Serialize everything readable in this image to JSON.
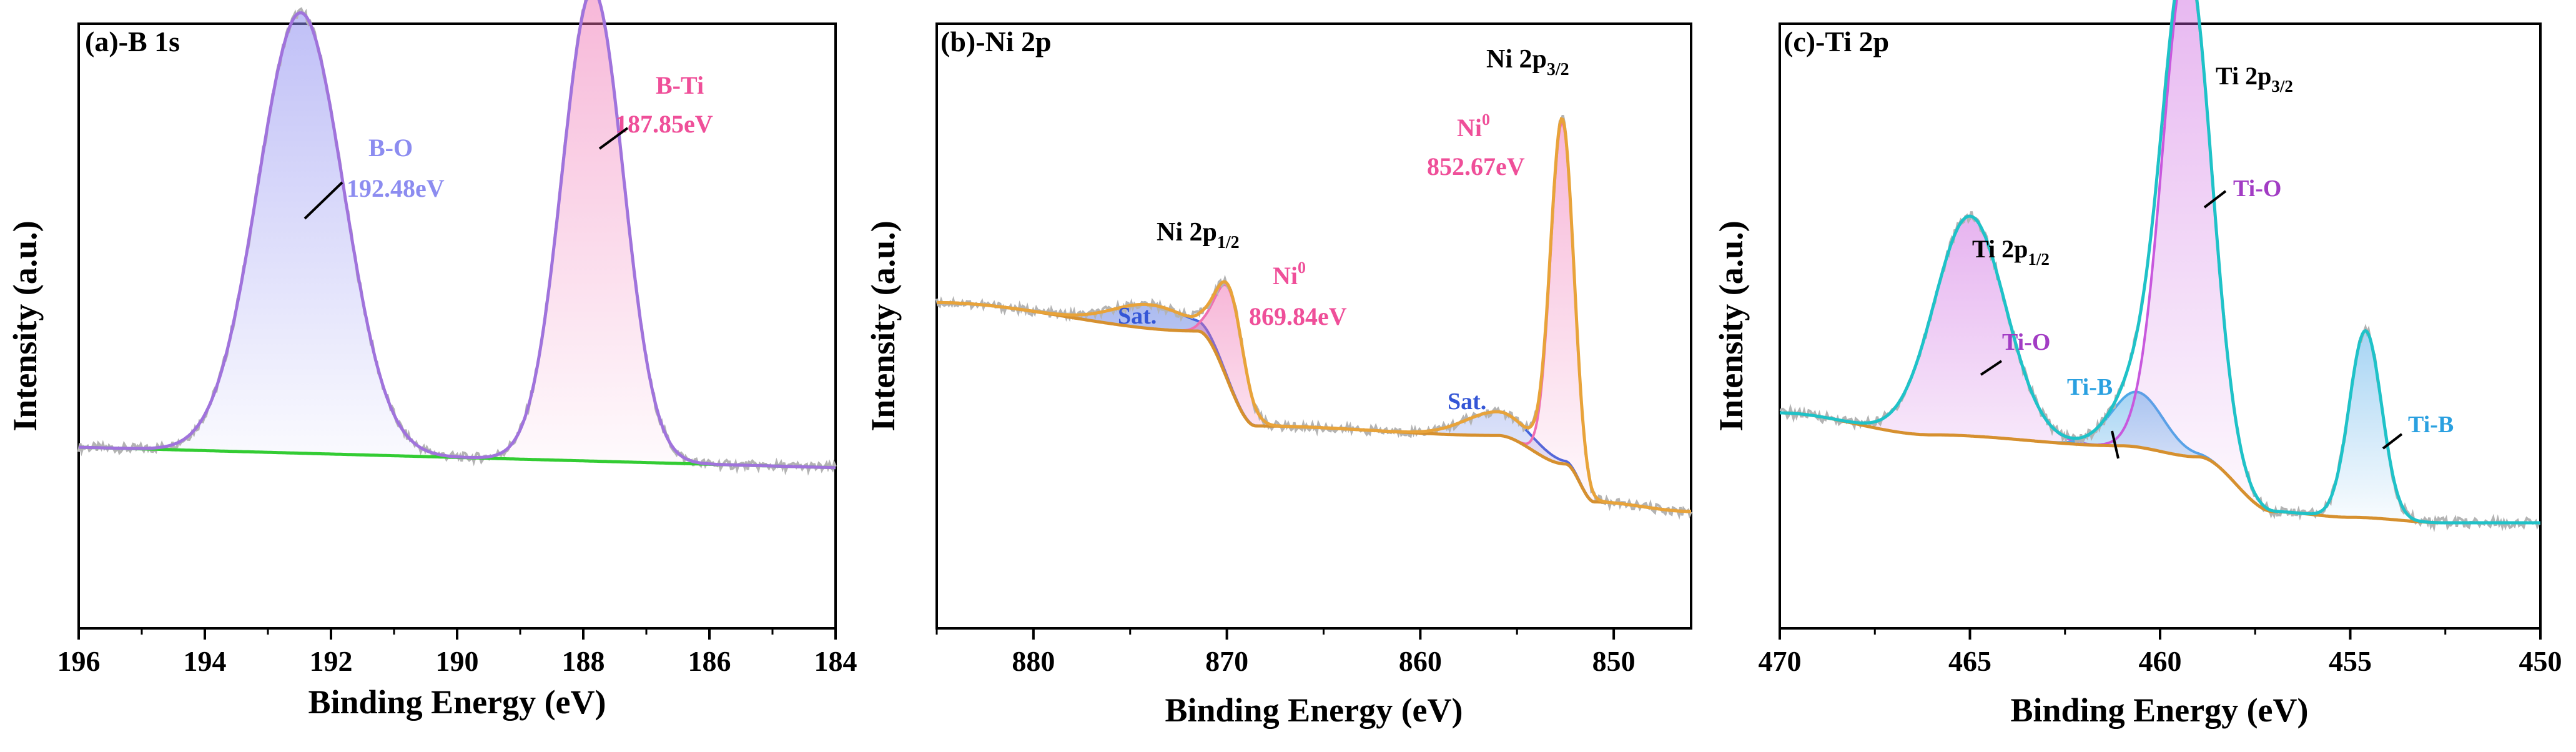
{
  "chart_data": [
    {
      "type": "line",
      "panel_label": "(a)-B 1s",
      "xlabel": "Binding Energy (eV)",
      "ylabel": "Intensity (a.u.)",
      "xlim": [
        196,
        184
      ],
      "x_reversed": true,
      "xticks": [
        196,
        194,
        192,
        190,
        188,
        186,
        184
      ],
      "ylim": [
        0,
        1
      ],
      "baseline": {
        "x": [
          196,
          184
        ],
        "y": [
          0.2,
          0.16
        ]
      },
      "peaks": [
        {
          "name": "B-O",
          "center": 192.48,
          "height": 0.86,
          "fwhm": 1.6,
          "color": "#8c8cf0",
          "label": "B-O",
          "value_label": "192.48eV"
        },
        {
          "name": "B-Ti",
          "center": 187.85,
          "height": 0.92,
          "fwhm": 1.15,
          "color": "#ef6fb1",
          "label": "B-Ti",
          "value_label": "187.85eV"
        }
      ],
      "series": [
        {
          "name": "raw",
          "color": "#b3b3b3"
        },
        {
          "name": "fit envelope",
          "color": "#a073dc"
        },
        {
          "name": "background",
          "color": "#33cc33"
        }
      ]
    },
    {
      "type": "line",
      "panel_label": "(b)-Ni 2p",
      "xlabel": "Binding Energy (eV)",
      "ylabel": "Intensity (a.u.)",
      "xlim": [
        885,
        846
      ],
      "x_reversed": true,
      "xticks": [
        880,
        870,
        860,
        850
      ],
      "ylim": [
        0,
        1
      ],
      "baseline": {
        "steps": [
          {
            "x": [
              885,
              871.5,
              868.5,
              856,
              852.5,
              851,
              846
            ],
            "y": [
              0.56,
              0.5,
              0.3,
              0.28,
              0.22,
              0.14,
              0.12
            ]
          }
        ]
      },
      "peaks": [
        {
          "name": "Sat.",
          "center": 874,
          "height": 0.05,
          "fwhm": 4.5,
          "color": "#4466dd",
          "label": "Sat."
        },
        {
          "name": "Ni0 2p1/2",
          "center": 869.84,
          "height": 0.2,
          "fwhm": 1.7,
          "color": "#ef6fb1",
          "label": "Ni0",
          "value_label": "869.84eV"
        },
        {
          "name": "Sat.",
          "center": 856,
          "height": 0.05,
          "fwhm": 4.0,
          "color": "#4466dd",
          "label": "Sat."
        },
        {
          "name": "Ni0 2p3/2",
          "center": 852.67,
          "height": 0.72,
          "fwhm": 1.4,
          "color": "#ef6fb1",
          "label": "Ni0",
          "value_label": "852.67eV"
        }
      ],
      "annotations": [
        "Ni 2p1/2",
        "Ni 2p3/2"
      ],
      "series": [
        {
          "name": "raw",
          "color": "#b3b3b3"
        },
        {
          "name": "fit envelope",
          "color": "#e8a33a"
        },
        {
          "name": "background",
          "color": "#d6902f"
        }
      ]
    },
    {
      "type": "line",
      "panel_label": "(c)-Ti 2p",
      "xlabel": "Binding Energy (eV)",
      "ylabel": "Intensity (a.u.)",
      "xlim": [
        470,
        450
      ],
      "x_reversed": true,
      "xticks": [
        470,
        465,
        460,
        455,
        450
      ],
      "ylim": [
        0,
        1
      ],
      "baseline": {
        "steps": [
          {
            "x": [
              470,
              466,
              461,
              459,
              457,
              455,
              452.5,
              450
            ],
            "y": [
              0.3,
              0.26,
              0.24,
              0.22,
              0.12,
              0.11,
              0.1,
              0.1
            ]
          }
        ]
      },
      "peaks": [
        {
          "name": "Ti-O 2p1/2",
          "center": 465,
          "height": 0.4,
          "fwhm": 2.2,
          "color": "#c858dd",
          "label": "Ti-O"
        },
        {
          "name": "Ti-B 2p1/2",
          "center": 460.6,
          "height": 0.1,
          "fwhm": 1.6,
          "color": "#4ea9e8",
          "label": "Ti-B"
        },
        {
          "name": "Ti-O 2p3/2",
          "center": 459.3,
          "height": 0.9,
          "fwhm": 1.5,
          "color": "#c858dd",
          "label": "Ti-O"
        },
        {
          "name": "Ti-B 2p3/2",
          "center": 454.6,
          "height": 0.34,
          "fwhm": 1.0,
          "color": "#4ea9e8",
          "label": "Ti-B"
        }
      ],
      "annotations": [
        "Ti 2p1/2",
        "Ti 2p3/2"
      ],
      "series": [
        {
          "name": "raw",
          "color": "#b3b3b3"
        },
        {
          "name": "fit envelope",
          "color": "#1fc2c8"
        },
        {
          "name": "background",
          "color": "#d6902f"
        },
        {
          "name": "mid component",
          "color": "#2f4fe0"
        }
      ]
    }
  ],
  "texts": {
    "a_title": "(a)-B 1s",
    "b_title": "(b)-Ni 2p",
    "c_title": "(c)-Ti 2p",
    "xlabel": "Binding Energy (eV)",
    "ylabel": "Intensity (a.u.)",
    "a_bo": "B-O",
    "a_bo_val": "192.48eV",
    "a_bti": "B-Ti",
    "a_bti_val": "187.85eV",
    "b_ni2p12_main": "Ni 2p",
    "b_ni2p12_sub": "1/2",
    "b_ni2p32_main": "Ni 2p",
    "b_ni2p32_sub": "3/2",
    "b_ni0_a": "Ni",
    "b_ni0_a_sup": "0",
    "b_ni0_a_val": "869.84eV",
    "b_ni0_b": "Ni",
    "b_ni0_b_sup": "0",
    "b_ni0_b_val": "852.67eV",
    "b_sat1": "Sat.",
    "b_sat2": "Sat.",
    "c_ti2p12_main": "Ti 2p",
    "c_ti2p12_sub": "1/2",
    "c_ti2p32_main": "Ti 2p",
    "c_ti2p32_sub": "3/2",
    "c_tio1": "Ti-O",
    "c_tio2": "Ti-O",
    "c_tib1": "Ti-B",
    "c_tib2": "Ti-B"
  }
}
